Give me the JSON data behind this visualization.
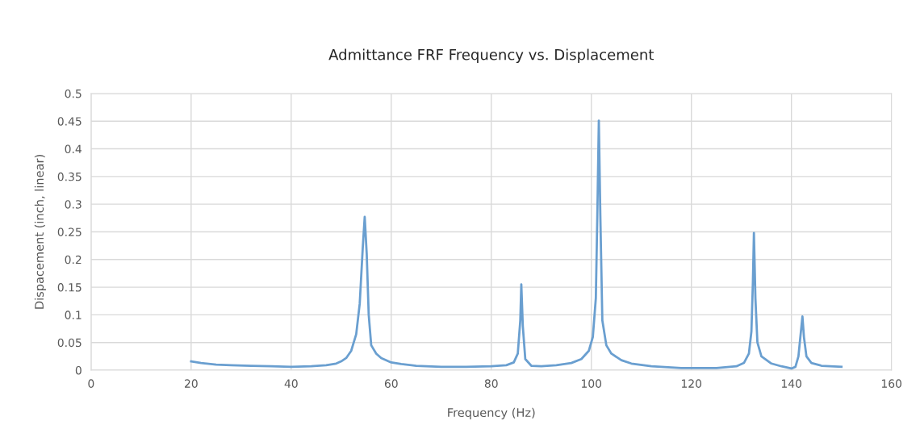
{
  "chart_data": {
    "type": "line",
    "title": "Admittance FRF Frequency vs. Displacement",
    "xlabel": "Frequency (Hz)",
    "ylabel": "Dispacement (inch, linear)",
    "xlim": [
      0,
      160
    ],
    "xticks": [
      0,
      20,
      40,
      60,
      80,
      100,
      120,
      140,
      160
    ],
    "ylim": [
      0,
      0.5
    ],
    "yticks": [
      0,
      0.05,
      0.1,
      0.15,
      0.2,
      0.25,
      0.3,
      0.35,
      0.4,
      0.45,
      0.5
    ],
    "grid": true,
    "marker": "none",
    "line_style": "solid",
    "series": [
      {
        "color": "#6a9fd0",
        "x": [
          20,
          22,
          25,
          28,
          32,
          36,
          40,
          44,
          47,
          49,
          50,
          51,
          52,
          53,
          53.7,
          54.3,
          54.7,
          55.1,
          55.5,
          56,
          57,
          58,
          60,
          62,
          65,
          70,
          75,
          80,
          83,
          84.5,
          85.3,
          85.8,
          86,
          86.3,
          86.8,
          88,
          90,
          93,
          96,
          98,
          99.5,
          100.3,
          100.9,
          101.2,
          101.5,
          101.8,
          102.2,
          103,
          104,
          106,
          108,
          112,
          118,
          125,
          129,
          130.5,
          131.5,
          132,
          132.3,
          132.5,
          132.8,
          133.2,
          134,
          136,
          138,
          140,
          140.8,
          141.4,
          141.9,
          142.2,
          142.5,
          143,
          144,
          146,
          150
        ],
        "values": [
          0.016,
          0.013,
          0.01,
          0.009,
          0.008,
          0.007,
          0.006,
          0.007,
          0.009,
          0.012,
          0.016,
          0.022,
          0.035,
          0.065,
          0.12,
          0.22,
          0.277,
          0.21,
          0.1,
          0.045,
          0.03,
          0.022,
          0.014,
          0.011,
          0.008,
          0.006,
          0.006,
          0.007,
          0.009,
          0.014,
          0.03,
          0.09,
          0.155,
          0.08,
          0.02,
          0.008,
          0.007,
          0.009,
          0.013,
          0.02,
          0.035,
          0.06,
          0.13,
          0.28,
          0.451,
          0.28,
          0.09,
          0.045,
          0.03,
          0.018,
          0.012,
          0.007,
          0.004,
          0.004,
          0.007,
          0.013,
          0.03,
          0.07,
          0.16,
          0.248,
          0.13,
          0.05,
          0.025,
          0.012,
          0.007,
          0.003,
          0.006,
          0.025,
          0.07,
          0.097,
          0.06,
          0.025,
          0.013,
          0.008,
          0.006
        ]
      }
    ]
  }
}
